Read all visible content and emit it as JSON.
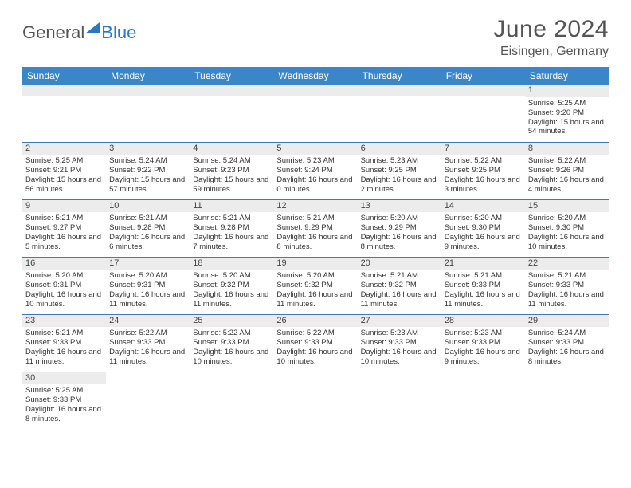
{
  "logo": {
    "text1": "General",
    "text2": "Blue"
  },
  "header": {
    "month": "June 2024",
    "location": "Eisingen, Germany"
  },
  "weekdays": [
    "Sunday",
    "Monday",
    "Tuesday",
    "Wednesday",
    "Thursday",
    "Friday",
    "Saturday"
  ],
  "colors": {
    "header_bg": "#3a86c8",
    "rule": "#3a7db8",
    "daynum_bg": "#ececec"
  },
  "weeks": [
    [
      null,
      null,
      null,
      null,
      null,
      null,
      {
        "n": "1",
        "sr": "Sunrise: 5:25 AM",
        "ss": "Sunset: 9:20 PM",
        "dl": "Daylight: 15 hours and 54 minutes."
      }
    ],
    [
      {
        "n": "2",
        "sr": "Sunrise: 5:25 AM",
        "ss": "Sunset: 9:21 PM",
        "dl": "Daylight: 15 hours and 56 minutes."
      },
      {
        "n": "3",
        "sr": "Sunrise: 5:24 AM",
        "ss": "Sunset: 9:22 PM",
        "dl": "Daylight: 15 hours and 57 minutes."
      },
      {
        "n": "4",
        "sr": "Sunrise: 5:24 AM",
        "ss": "Sunset: 9:23 PM",
        "dl": "Daylight: 15 hours and 59 minutes."
      },
      {
        "n": "5",
        "sr": "Sunrise: 5:23 AM",
        "ss": "Sunset: 9:24 PM",
        "dl": "Daylight: 16 hours and 0 minutes."
      },
      {
        "n": "6",
        "sr": "Sunrise: 5:23 AM",
        "ss": "Sunset: 9:25 PM",
        "dl": "Daylight: 16 hours and 2 minutes."
      },
      {
        "n": "7",
        "sr": "Sunrise: 5:22 AM",
        "ss": "Sunset: 9:25 PM",
        "dl": "Daylight: 16 hours and 3 minutes."
      },
      {
        "n": "8",
        "sr": "Sunrise: 5:22 AM",
        "ss": "Sunset: 9:26 PM",
        "dl": "Daylight: 16 hours and 4 minutes."
      }
    ],
    [
      {
        "n": "9",
        "sr": "Sunrise: 5:21 AM",
        "ss": "Sunset: 9:27 PM",
        "dl": "Daylight: 16 hours and 5 minutes."
      },
      {
        "n": "10",
        "sr": "Sunrise: 5:21 AM",
        "ss": "Sunset: 9:28 PM",
        "dl": "Daylight: 16 hours and 6 minutes."
      },
      {
        "n": "11",
        "sr": "Sunrise: 5:21 AM",
        "ss": "Sunset: 9:28 PM",
        "dl": "Daylight: 16 hours and 7 minutes."
      },
      {
        "n": "12",
        "sr": "Sunrise: 5:21 AM",
        "ss": "Sunset: 9:29 PM",
        "dl": "Daylight: 16 hours and 8 minutes."
      },
      {
        "n": "13",
        "sr": "Sunrise: 5:20 AM",
        "ss": "Sunset: 9:29 PM",
        "dl": "Daylight: 16 hours and 8 minutes."
      },
      {
        "n": "14",
        "sr": "Sunrise: 5:20 AM",
        "ss": "Sunset: 9:30 PM",
        "dl": "Daylight: 16 hours and 9 minutes."
      },
      {
        "n": "15",
        "sr": "Sunrise: 5:20 AM",
        "ss": "Sunset: 9:30 PM",
        "dl": "Daylight: 16 hours and 10 minutes."
      }
    ],
    [
      {
        "n": "16",
        "sr": "Sunrise: 5:20 AM",
        "ss": "Sunset: 9:31 PM",
        "dl": "Daylight: 16 hours and 10 minutes."
      },
      {
        "n": "17",
        "sr": "Sunrise: 5:20 AM",
        "ss": "Sunset: 9:31 PM",
        "dl": "Daylight: 16 hours and 11 minutes."
      },
      {
        "n": "18",
        "sr": "Sunrise: 5:20 AM",
        "ss": "Sunset: 9:32 PM",
        "dl": "Daylight: 16 hours and 11 minutes."
      },
      {
        "n": "19",
        "sr": "Sunrise: 5:20 AM",
        "ss": "Sunset: 9:32 PM",
        "dl": "Daylight: 16 hours and 11 minutes."
      },
      {
        "n": "20",
        "sr": "Sunrise: 5:21 AM",
        "ss": "Sunset: 9:32 PM",
        "dl": "Daylight: 16 hours and 11 minutes."
      },
      {
        "n": "21",
        "sr": "Sunrise: 5:21 AM",
        "ss": "Sunset: 9:33 PM",
        "dl": "Daylight: 16 hours and 11 minutes."
      },
      {
        "n": "22",
        "sr": "Sunrise: 5:21 AM",
        "ss": "Sunset: 9:33 PM",
        "dl": "Daylight: 16 hours and 11 minutes."
      }
    ],
    [
      {
        "n": "23",
        "sr": "Sunrise: 5:21 AM",
        "ss": "Sunset: 9:33 PM",
        "dl": "Daylight: 16 hours and 11 minutes."
      },
      {
        "n": "24",
        "sr": "Sunrise: 5:22 AM",
        "ss": "Sunset: 9:33 PM",
        "dl": "Daylight: 16 hours and 11 minutes."
      },
      {
        "n": "25",
        "sr": "Sunrise: 5:22 AM",
        "ss": "Sunset: 9:33 PM",
        "dl": "Daylight: 16 hours and 10 minutes."
      },
      {
        "n": "26",
        "sr": "Sunrise: 5:22 AM",
        "ss": "Sunset: 9:33 PM",
        "dl": "Daylight: 16 hours and 10 minutes."
      },
      {
        "n": "27",
        "sr": "Sunrise: 5:23 AM",
        "ss": "Sunset: 9:33 PM",
        "dl": "Daylight: 16 hours and 10 minutes."
      },
      {
        "n": "28",
        "sr": "Sunrise: 5:23 AM",
        "ss": "Sunset: 9:33 PM",
        "dl": "Daylight: 16 hours and 9 minutes."
      },
      {
        "n": "29",
        "sr": "Sunrise: 5:24 AM",
        "ss": "Sunset: 9:33 PM",
        "dl": "Daylight: 16 hours and 8 minutes."
      }
    ],
    [
      {
        "n": "30",
        "sr": "Sunrise: 5:25 AM",
        "ss": "Sunset: 9:33 PM",
        "dl": "Daylight: 16 hours and 8 minutes."
      },
      null,
      null,
      null,
      null,
      null,
      null
    ]
  ]
}
